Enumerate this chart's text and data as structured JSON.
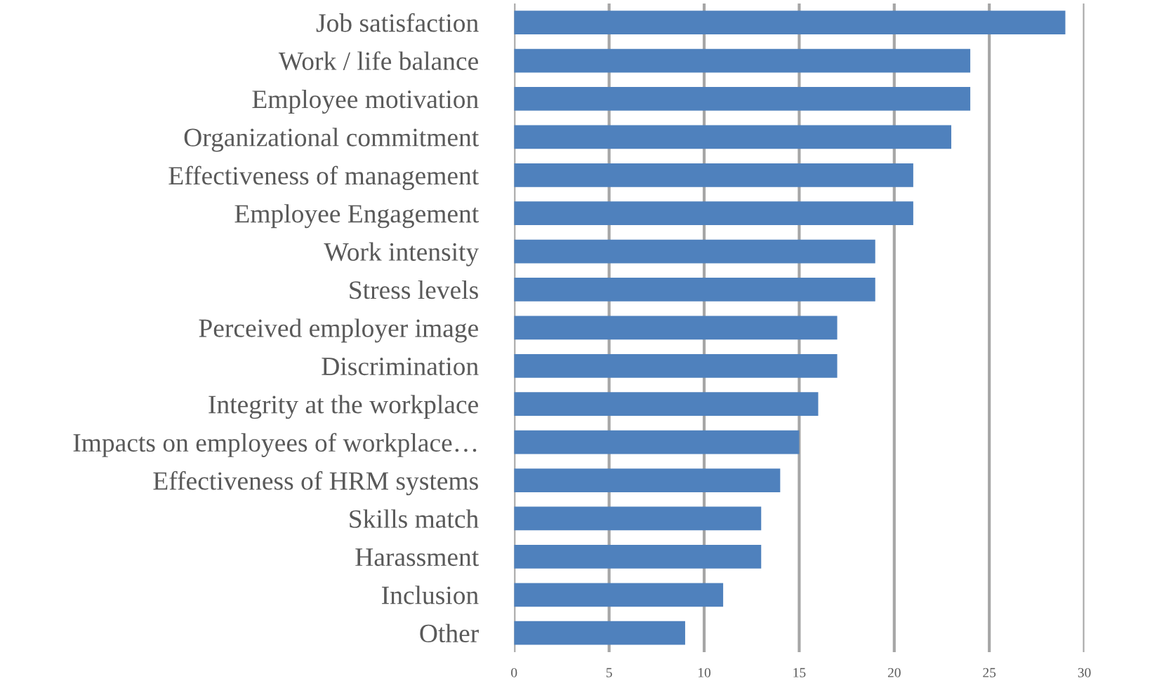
{
  "chart_data": {
    "type": "bar",
    "orientation": "horizontal",
    "categories": [
      "Job satisfaction",
      "Work / life balance",
      "Employee motivation",
      "Organizational commitment",
      "Effectiveness of management",
      "Employee Engagement",
      "Work intensity",
      "Stress levels",
      "Perceived employer image",
      "Discrimination",
      "Integrity at the workplace",
      "Impacts on employees of workplace…",
      "Effectiveness of HRM systems",
      "Skills match",
      "Harassment",
      "Inclusion",
      "Other"
    ],
    "values": [
      29,
      24,
      24,
      23,
      21,
      21,
      19,
      19,
      17,
      17,
      16,
      15,
      14,
      13,
      13,
      11,
      9
    ],
    "color": "#4f81bd",
    "xlim": [
      0,
      30
    ],
    "xticks": [
      0,
      5,
      10,
      15,
      20,
      25,
      30
    ],
    "grid": "x"
  }
}
